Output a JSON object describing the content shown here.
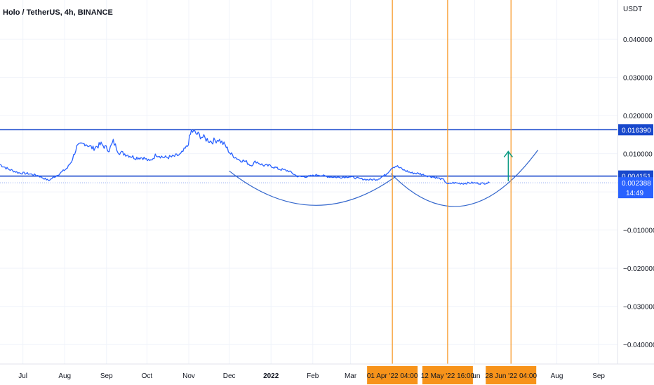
{
  "header": {
    "title": "Holo / TetherUS, 4h, BINANCE",
    "currency": "USDT"
  },
  "colors": {
    "price_line": "#2962ff",
    "levels": "#1848cc",
    "verticals": "#f7931a",
    "arrow": "#089981",
    "grid": "#f0f3fa",
    "axis_text": "#131722",
    "arc": "#3366cc"
  },
  "chart_data": {
    "type": "line",
    "symbol": "HOTUSDT",
    "interval": "4h",
    "exchange": "BINANCE",
    "y_ticks": [
      {
        "value": 0.04,
        "label": "0.040000"
      },
      {
        "value": 0.03,
        "label": "0.030000"
      },
      {
        "value": 0.02,
        "label": "0.020000"
      },
      {
        "value": 0.01,
        "label": "0.010000"
      },
      {
        "value": -0.01,
        "label": "−0.010000"
      },
      {
        "value": -0.02,
        "label": "−0.020000"
      },
      {
        "value": -0.03,
        "label": "−0.030000"
      },
      {
        "value": -0.04,
        "label": "−0.040000"
      }
    ],
    "x_ticks": [
      {
        "date": "2021-07-01",
        "label": "Jul",
        "bold": false
      },
      {
        "date": "2021-08-01",
        "label": "Aug",
        "bold": false
      },
      {
        "date": "2021-09-01",
        "label": "Sep",
        "bold": false
      },
      {
        "date": "2021-10-01",
        "label": "Oct",
        "bold": false
      },
      {
        "date": "2021-11-01",
        "label": "Nov",
        "bold": false
      },
      {
        "date": "2021-12-01",
        "label": "Dec",
        "bold": false
      },
      {
        "date": "2022-01-01",
        "label": "2022",
        "bold": true
      },
      {
        "date": "2022-02-01",
        "label": "Feb",
        "bold": false
      },
      {
        "date": "2022-03-01",
        "label": "Mar",
        "bold": false
      },
      {
        "date": "2022-06-01",
        "label": "Jun",
        "bold": false
      },
      {
        "date": "2022-08-01",
        "label": "Aug",
        "bold": false
      },
      {
        "date": "2022-09-01",
        "label": "Sep",
        "bold": false
      }
    ],
    "x_range": [
      "2021-06-14",
      "2022-09-15"
    ],
    "y_range": [
      -0.0451,
      0.0503
    ],
    "series": [
      {
        "points": [
          [
            "2021-06-14",
            0.0072
          ],
          [
            "2021-06-20",
            0.006
          ],
          [
            "2021-06-28",
            0.005
          ],
          [
            "2021-07-05",
            0.0048
          ],
          [
            "2021-07-12",
            0.0043
          ],
          [
            "2021-07-20",
            0.003
          ],
          [
            "2021-07-27",
            0.0045
          ],
          [
            "2021-08-03",
            0.0063
          ],
          [
            "2021-08-06",
            0.008
          ],
          [
            "2021-08-10",
            0.0118
          ],
          [
            "2021-08-16",
            0.0128
          ],
          [
            "2021-08-22",
            0.0114
          ],
          [
            "2021-08-28",
            0.0125
          ],
          [
            "2021-09-03",
            0.011
          ],
          [
            "2021-09-06",
            0.0132
          ],
          [
            "2021-09-10",
            0.0105
          ],
          [
            "2021-09-16",
            0.0098
          ],
          [
            "2021-09-22",
            0.009
          ],
          [
            "2021-09-28",
            0.009
          ],
          [
            "2021-10-03",
            0.008
          ],
          [
            "2021-10-08",
            0.0098
          ],
          [
            "2021-10-14",
            0.009
          ],
          [
            "2021-10-20",
            0.0092
          ],
          [
            "2021-10-26",
            0.0098
          ],
          [
            "2021-10-31",
            0.012
          ],
          [
            "2021-11-03",
            0.016
          ],
          [
            "2021-11-08",
            0.015
          ],
          [
            "2021-11-13",
            0.014
          ],
          [
            "2021-11-18",
            0.0132
          ],
          [
            "2021-11-23",
            0.0138
          ],
          [
            "2021-11-28",
            0.0122
          ],
          [
            "2021-12-02",
            0.01
          ],
          [
            "2021-12-08",
            0.0085
          ],
          [
            "2021-12-13",
            0.008
          ],
          [
            "2021-12-17",
            0.007
          ],
          [
            "2021-12-21",
            0.008
          ],
          [
            "2021-12-26",
            0.007
          ],
          [
            "2022-01-01",
            0.0068
          ],
          [
            "2022-01-07",
            0.006
          ],
          [
            "2022-01-14",
            0.0055
          ],
          [
            "2022-01-21",
            0.004
          ],
          [
            "2022-01-28",
            0.004
          ],
          [
            "2022-02-05",
            0.0045
          ],
          [
            "2022-02-12",
            0.004
          ],
          [
            "2022-02-20",
            0.0038
          ],
          [
            "2022-02-28",
            0.004
          ],
          [
            "2022-03-07",
            0.0035
          ],
          [
            "2022-03-14",
            0.0032
          ],
          [
            "2022-03-21",
            0.0033
          ],
          [
            "2022-03-27",
            0.0045
          ],
          [
            "2022-04-01",
            0.0065
          ],
          [
            "2022-04-04",
            0.0068
          ],
          [
            "2022-04-09",
            0.0058
          ],
          [
            "2022-04-15",
            0.005
          ],
          [
            "2022-04-21",
            0.0048
          ],
          [
            "2022-04-27",
            0.0042
          ],
          [
            "2022-05-03",
            0.0038
          ],
          [
            "2022-05-09",
            0.0032
          ],
          [
            "2022-05-12",
            0.002
          ],
          [
            "2022-05-16",
            0.0024
          ],
          [
            "2022-05-23",
            0.0022
          ],
          [
            "2022-05-30",
            0.0024
          ],
          [
            "2022-06-06",
            0.0022
          ],
          [
            "2022-06-12",
            0.0024
          ]
        ]
      }
    ],
    "horizontal_levels": [
      {
        "value": 0.0163,
        "label": "0.016390"
      },
      {
        "value": 0.004151,
        "label": "0.004151"
      }
    ],
    "last_price": {
      "value": 0.002388,
      "label": "0.002388",
      "countdown": "14:49"
    },
    "vertical_markers": [
      {
        "date": "2022-04-01",
        "label": "01 Apr '22   04:00"
      },
      {
        "date": "2022-05-12",
        "label": "12 May '22   16:00"
      },
      {
        "date": "2022-06-28",
        "label": "28 Jun '22   04:00"
      }
    ],
    "arcs": [
      {
        "start": [
          "2021-12-01",
          0.0055
        ],
        "end": [
          "2022-04-04",
          0.0042
        ],
        "bottom": -0.0035
      },
      {
        "start": [
          "2022-03-31",
          0.0048
        ],
        "end": [
          "2022-07-18",
          0.011
        ],
        "bottom": -0.0036
      }
    ],
    "arrow": {
      "date": "2022-06-26",
      "from": 0.0028,
      "to": 0.0106
    },
    "grid": true
  }
}
